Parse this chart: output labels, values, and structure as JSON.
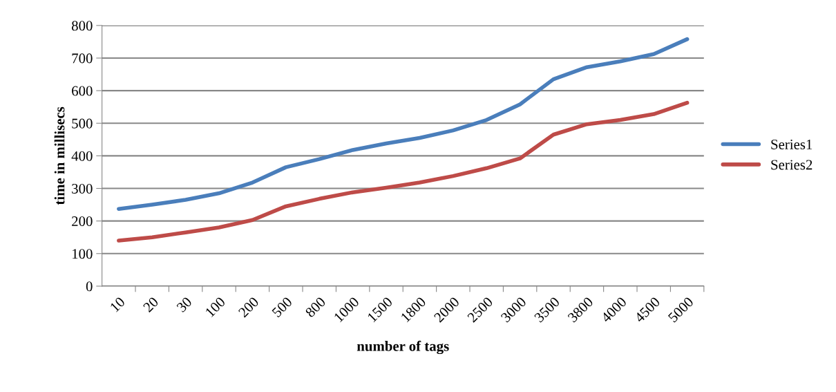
{
  "chart_data": {
    "type": "line",
    "xlabel": "number of tags",
    "ylabel": "time in millisecs",
    "categories": [
      "10",
      "20",
      "30",
      "100",
      "200",
      "500",
      "800",
      "1000",
      "1500",
      "1800",
      "2000",
      "2500",
      "3000",
      "3500",
      "3800",
      "4000",
      "4500",
      "5000"
    ],
    "series": [
      {
        "name": "Series1",
        "color": "#4a7ebb",
        "values": [
          237,
          250,
          265,
          285,
          318,
          365,
          390,
          418,
          438,
          455,
          478,
          510,
          558,
          635,
          672,
          690,
          712,
          758
        ]
      },
      {
        "name": "Series2",
        "color": "#be4b48",
        "values": [
          140,
          150,
          165,
          180,
          203,
          245,
          268,
          288,
          302,
          318,
          338,
          362,
          392,
          465,
          497,
          510,
          528,
          563
        ]
      }
    ],
    "ylim": [
      0,
      800
    ],
    "yticks": [
      0,
      100,
      200,
      300,
      400,
      500,
      600,
      700,
      800
    ],
    "grid": "y",
    "legend": "right",
    "marker": "none",
    "line_style": "solid"
  }
}
